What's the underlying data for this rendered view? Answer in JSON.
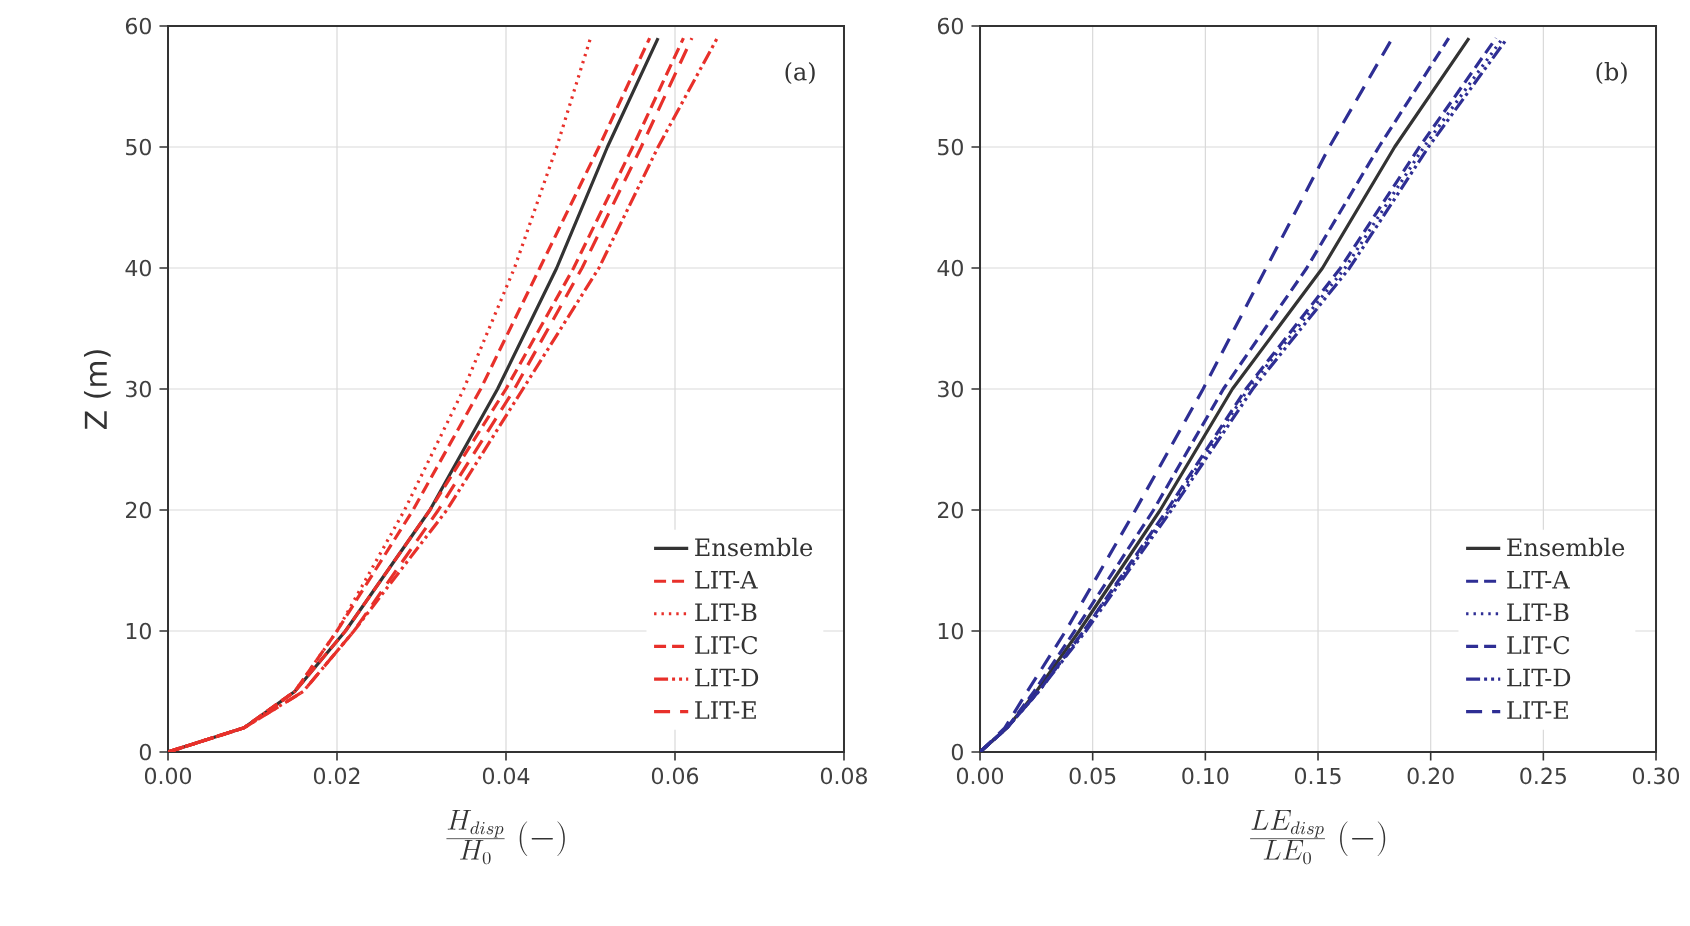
{
  "chart_data": [
    {
      "type": "line",
      "xlabel": "\\frac{H_{disp}}{H_0}\\;(-)",
      "ylabel": "Z (m)",
      "annotations": [
        "(a)"
      ],
      "xlim": [
        0,
        0.08
      ],
      "ylim": [
        0,
        60
      ],
      "xticks": [
        {
          "value": 0,
          "label": "0.00"
        },
        {
          "value": 0.02,
          "label": "0.02"
        },
        {
          "value": 0.04,
          "label": "0.04"
        },
        {
          "value": 0.06,
          "label": "0.06"
        },
        {
          "value": 0.08,
          "label": "0.08"
        }
      ],
      "yticks": [
        0,
        10,
        20,
        30,
        40,
        50,
        60
      ],
      "grid": true,
      "legend": "bottom right",
      "series": [
        {
          "name": "Ensemble",
          "color": "#333333",
          "line_style": "solid",
          "x": [
            0,
            0.009,
            0.015,
            0.021,
            0.031,
            0.039,
            0.046,
            0.052,
            0.058
          ],
          "values": [
            0,
            2,
            5,
            10,
            20,
            30,
            40,
            50,
            59
          ]
        },
        {
          "name": "LIT-A",
          "color": "#e8302a",
          "line_style": "dashed",
          "x": [
            0,
            0.009,
            0.015,
            0.02,
            0.029,
            0.037,
            0.044,
            0.051,
            0.057
          ],
          "values": [
            0,
            2,
            5,
            10,
            20,
            30,
            40,
            50,
            59
          ]
        },
        {
          "name": "LIT-B",
          "color": "#e8302a",
          "line_style": "dotted",
          "x": [
            0,
            0.009,
            0.015,
            0.02,
            0.028,
            0.035,
            0.041,
            0.046,
            0.05
          ],
          "values": [
            0,
            2,
            5,
            10,
            20,
            30,
            40,
            50,
            59
          ]
        },
        {
          "name": "LIT-C",
          "color": "#e8302a",
          "line_style": "dashed",
          "x": [
            0,
            0.009,
            0.015,
            0.021,
            0.031,
            0.04,
            0.048,
            0.055,
            0.061
          ],
          "values": [
            0,
            2,
            5,
            10,
            20,
            30,
            40,
            50,
            59
          ]
        },
        {
          "name": "LIT-D",
          "color": "#e8302a",
          "line_style": "dashdotdot",
          "x": [
            0,
            0.009,
            0.016,
            0.022,
            0.033,
            0.042,
            0.051,
            0.058,
            0.065
          ],
          "values": [
            0,
            2,
            5,
            10,
            20,
            30,
            40,
            50,
            59
          ]
        },
        {
          "name": "LIT-E",
          "color": "#e8302a",
          "line_style": "longdash",
          "x": [
            0,
            0.009,
            0.016,
            0.022,
            0.032,
            0.041,
            0.049,
            0.056,
            0.062
          ],
          "values": [
            0,
            2,
            5,
            10,
            20,
            30,
            40,
            50,
            59
          ]
        }
      ]
    },
    {
      "type": "line",
      "xlabel": "\\frac{LE_{disp}}{LE_0}\\;(-)",
      "annotations": [
        "(b)"
      ],
      "xlim": [
        0,
        0.3
      ],
      "ylim": [
        0,
        60
      ],
      "xticks": [
        {
          "value": 0,
          "label": "0.00"
        },
        {
          "value": 0.05,
          "label": "0.05"
        },
        {
          "value": 0.1,
          "label": "0.10"
        },
        {
          "value": 0.15,
          "label": "0.15"
        },
        {
          "value": 0.2,
          "label": "0.20"
        },
        {
          "value": 0.25,
          "label": "0.25"
        },
        {
          "value": 0.3,
          "label": "0.30"
        }
      ],
      "yticks": [
        0,
        10,
        20,
        30,
        40,
        50,
        60
      ],
      "grid": true,
      "legend": "bottom right",
      "series": [
        {
          "name": "Ensemble",
          "color": "#333333",
          "line_style": "solid",
          "x": [
            0,
            0.012,
            0.025,
            0.044,
            0.08,
            0.112,
            0.152,
            0.184,
            0.217
          ],
          "values": [
            0,
            2,
            5,
            10,
            20,
            30,
            40,
            50,
            59
          ]
        },
        {
          "name": "LIT-A",
          "color": "#2e2e94",
          "line_style": "dashed",
          "x": [
            0,
            0.012,
            0.024,
            0.042,
            0.077,
            0.108,
            0.145,
            0.177,
            0.208
          ],
          "values": [
            0,
            2,
            5,
            10,
            20,
            30,
            40,
            50,
            59
          ]
        },
        {
          "name": "LIT-B",
          "color": "#2e2e94",
          "line_style": "dotted",
          "x": [
            0,
            0.012,
            0.026,
            0.046,
            0.084,
            0.119,
            0.162,
            0.197,
            0.232
          ],
          "values": [
            0,
            2,
            5,
            10,
            20,
            30,
            40,
            50,
            59
          ]
        },
        {
          "name": "LIT-C",
          "color": "#2e2e94",
          "line_style": "dashed",
          "x": [
            0,
            0.012,
            0.026,
            0.046,
            0.083,
            0.118,
            0.16,
            0.195,
            0.229
          ],
          "values": [
            0,
            2,
            5,
            10,
            20,
            30,
            40,
            50,
            59
          ]
        },
        {
          "name": "LIT-D",
          "color": "#2e2e94",
          "line_style": "dashdotdot",
          "x": [
            0,
            0.012,
            0.026,
            0.047,
            0.085,
            0.121,
            0.164,
            0.199,
            0.234
          ],
          "values": [
            0,
            2,
            5,
            10,
            20,
            30,
            40,
            50,
            59
          ]
        },
        {
          "name": "LIT-E",
          "color": "#2e2e94",
          "line_style": "longdash",
          "x": [
            0,
            0.011,
            0.021,
            0.038,
            0.069,
            0.099,
            0.127,
            0.155,
            0.183
          ],
          "values": [
            0,
            2,
            5,
            10,
            20,
            30,
            40,
            50,
            59
          ]
        }
      ]
    }
  ]
}
